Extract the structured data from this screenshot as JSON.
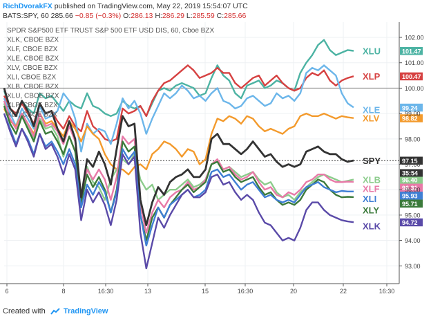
{
  "header": {
    "author": "RichDvorakFX",
    "published_text": "published on TradingView.com, May 22, 2019 15:54:07 UTC",
    "symbol_line": "BATS:SPY, 60",
    "last": "285.66",
    "change": "−0.85 (−0.3%)",
    "o_label": "O:",
    "o_val": "286.13",
    "h_label": "H:",
    "h_val": "286.29",
    "l_label": "L:",
    "l_val": "285.59",
    "c_label": "C:",
    "c_val": "285.66"
  },
  "footer": {
    "created_with": "Created with",
    "brand": "TradingView"
  },
  "chart_data": {
    "type": "line",
    "legend": [
      "SPDR S&P500 ETF TRUST S&P 500 ETF USD DIS, 60, Cboe BZX",
      "XLK, CBOE BZX",
      "XLF, CBOE BZX",
      "XLE, CBOE BZX",
      "XLV, CBOE BZX",
      "XLI, CBOE BZX",
      "XLB, CBOE BZX",
      "XLU, CBOE BZX",
      "XLP, CBOE BZX",
      "XLY, CBOE BZX"
    ],
    "x_ticks": [
      "6",
      "8",
      "16:30",
      "13",
      "15",
      "16:30",
      "20",
      "22",
      "16:30"
    ],
    "y_ticks": [
      93.0,
      94.0,
      95.0,
      96.0,
      97.0,
      98.0,
      99.0,
      100.0,
      101.0,
      102.0
    ],
    "ylim": [
      92.3,
      102.6
    ],
    "reference_line": 100.0,
    "price_line": 97.15,
    "countdown": "35:54",
    "colors": {
      "XLU": "#4cb3a3",
      "XLP": "#d64141",
      "XLE": "#6cb6ea",
      "XLV": "#f39a2c",
      "SPY": "#333333",
      "XLB": "#8ccc8c",
      "XLF": "#e87aa8",
      "XLI": "#3f7fd4",
      "XLY": "#3b7a3b",
      "XLK": "#5a4aa8"
    },
    "series": [
      {
        "name": "XLU",
        "last": 101.47,
        "label_style": "big",
        "values": [
          99.9,
          99.2,
          98.9,
          99.5,
          99.2,
          99.0,
          99.8,
          99.6,
          99.7,
          99.4,
          99.1,
          99.5,
          99.3,
          99.2,
          99.8,
          99.3,
          99.2,
          99.0,
          98.9,
          99.0,
          99.5,
          99.3,
          99.2,
          99.3,
          98.9,
          99.4,
          99.9,
          100.0,
          99.9,
          100.1,
          100.2,
          100.1,
          100.0,
          99.7,
          99.8,
          100.4,
          100.9,
          100.5,
          100.3,
          99.8,
          99.6,
          100.1,
          100.2,
          100.3,
          100.0,
          100.1,
          100.3,
          100.2,
          100.0,
          99.9,
          100.6,
          101.0,
          101.3,
          101.7,
          101.9,
          101.5,
          101.3,
          101.4,
          101.5,
          101.47
        ]
      },
      {
        "name": "XLP",
        "last": 100.47,
        "label_style": "big",
        "values": [
          99.7,
          99.2,
          99.0,
          99.4,
          99.0,
          98.6,
          99.4,
          99.0,
          99.1,
          98.7,
          98.4,
          98.9,
          98.5,
          98.3,
          99.1,
          98.5,
          98.3,
          98.0,
          97.9,
          98.0,
          99.2,
          99.0,
          99.1,
          99.3,
          98.9,
          99.5,
          99.9,
          100.2,
          100.3,
          100.5,
          100.7,
          100.9,
          100.7,
          100.4,
          100.5,
          100.6,
          100.8,
          100.6,
          100.6,
          100.2,
          100.0,
          100.2,
          100.4,
          100.5,
          100.1,
          100.3,
          100.5,
          100.2,
          100.0,
          99.9,
          100.0,
          100.4,
          100.6,
          100.5,
          100.7,
          100.3,
          100.1,
          100.3,
          100.4,
          100.47
        ]
      },
      {
        "name": "XLE",
        "last": 99.24,
        "label_style": "small",
        "values": [
          99.6,
          99.0,
          98.5,
          99.2,
          98.8,
          98.4,
          99.3,
          98.8,
          98.9,
          99.1,
          99.8,
          99.5,
          98.8,
          97.5,
          98.6,
          98.2,
          98.4,
          98.3,
          97.8,
          98.6,
          99.6,
          99.2,
          99.5,
          99.0,
          98.2,
          98.8,
          99.3,
          99.8,
          99.6,
          99.8,
          100.1,
          99.9,
          99.6,
          99.7,
          99.5,
          99.8,
          100.0,
          99.5,
          99.4,
          99.2,
          99.3,
          99.6,
          99.7,
          99.5,
          99.3,
          99.4,
          99.8,
          99.6,
          99.7,
          99.5,
          99.8,
          100.6,
          100.8,
          100.7,
          100.9,
          100.7,
          100.5,
          99.8,
          99.4,
          99.24
        ]
      },
      {
        "name": "XLV",
        "last": 98.82,
        "label_style": "small",
        "values": [
          99.2,
          98.7,
          98.5,
          99.0,
          98.6,
          98.2,
          99.0,
          98.6,
          98.7,
          98.4,
          98.1,
          98.7,
          98.4,
          97.9,
          98.5,
          98.2,
          98.0,
          97.4,
          97.0,
          96.8,
          96.8,
          96.6,
          96.9,
          97.0,
          96.8,
          97.4,
          97.6,
          97.9,
          97.8,
          97.6,
          97.3,
          97.6,
          97.5,
          97.0,
          97.2,
          98.2,
          98.8,
          98.7,
          98.9,
          98.8,
          98.6,
          98.9,
          98.8,
          98.5,
          98.3,
          98.4,
          98.3,
          98.2,
          98.4,
          98.5,
          98.9,
          99.0,
          98.9,
          98.9,
          99.0,
          98.9,
          98.8,
          98.9,
          98.85,
          98.82
        ]
      },
      {
        "name": "SPY",
        "last": 97.15,
        "label_style": "big",
        "values": [
          100.0,
          99.2,
          98.9,
          99.5,
          99.1,
          98.5,
          99.4,
          99.0,
          99.1,
          98.4,
          97.9,
          98.7,
          98.0,
          95.7,
          97.2,
          96.9,
          97.5,
          97.0,
          96.2,
          97.6,
          98.9,
          98.5,
          98.6,
          95.6,
          94.6,
          95.5,
          96.1,
          95.8,
          96.3,
          96.5,
          96.6,
          96.8,
          96.5,
          96.5,
          96.8,
          98.0,
          98.2,
          97.8,
          97.8,
          97.6,
          97.4,
          97.6,
          97.9,
          97.6,
          97.3,
          97.4,
          97.1,
          96.9,
          97.0,
          96.9,
          97.0,
          97.5,
          97.6,
          97.7,
          97.5,
          97.4,
          97.4,
          97.2,
          97.1,
          97.15
        ]
      },
      {
        "name": "XLB",
        "last": 96.4,
        "label_style": "big",
        "values": [
          99.4,
          98.6,
          98.2,
          98.9,
          98.5,
          98.0,
          98.8,
          98.4,
          98.5,
          98.1,
          97.3,
          98.1,
          97.5,
          95.8,
          96.9,
          96.3,
          96.1,
          95.6,
          96.4,
          96.8,
          97.2,
          97.0,
          97.4,
          96.4,
          96.0,
          96.2,
          95.6,
          95.8,
          96.0,
          96.0,
          96.2,
          96.4,
          96.1,
          96.2,
          96.4,
          97.0,
          97.1,
          96.8,
          96.9,
          96.7,
          96.5,
          96.6,
          96.7,
          96.4,
          96.2,
          96.3,
          95.9,
          95.7,
          95.8,
          95.6,
          95.9,
          96.1,
          96.3,
          96.5,
          96.6,
          96.5,
          96.4,
          96.3,
          96.35,
          96.4
        ]
      },
      {
        "name": "XLF",
        "last": 96.31,
        "label_style": "big",
        "values": [
          99.5,
          98.8,
          98.4,
          99.0,
          98.6,
          98.1,
          99.0,
          98.5,
          98.6,
          98.3,
          97.8,
          98.5,
          97.9,
          95.6,
          96.8,
          96.4,
          96.8,
          96.4,
          95.6,
          96.5,
          98.1,
          97.8,
          98.0,
          95.4,
          94.3,
          95.1,
          95.6,
          95.3,
          95.7,
          95.9,
          96.0,
          96.3,
          96.0,
          96.1,
          96.4,
          97.0,
          97.2,
          96.8,
          96.9,
          96.6,
          96.4,
          96.5,
          96.7,
          96.3,
          96.0,
          96.1,
          95.8,
          95.7,
          95.9,
          95.8,
          96.0,
          96.3,
          96.4,
          96.6,
          96.6,
          96.4,
          96.3,
          96.3,
          96.32,
          96.31
        ]
      },
      {
        "name": "XLI",
        "last": 95.93,
        "label_style": "big",
        "values": [
          99.0,
          98.4,
          97.8,
          98.4,
          98.0,
          97.4,
          98.2,
          97.7,
          97.9,
          97.5,
          97.0,
          97.6,
          97.0,
          95.3,
          96.2,
          95.8,
          96.3,
          95.9,
          95.1,
          95.9,
          97.6,
          97.2,
          97.5,
          95.0,
          93.8,
          94.6,
          95.3,
          94.9,
          95.4,
          95.6,
          95.8,
          96.0,
          95.7,
          95.8,
          96.0,
          96.7,
          96.8,
          96.5,
          96.6,
          96.3,
          96.0,
          96.2,
          96.3,
          96.0,
          95.7,
          95.8,
          95.6,
          95.5,
          95.6,
          95.5,
          95.8,
          96.1,
          96.2,
          96.3,
          96.1,
          96.0,
          95.9,
          95.95,
          95.93,
          95.93
        ]
      },
      {
        "name": "XLY",
        "last": 95.71,
        "label_style": "big",
        "values": [
          99.3,
          98.6,
          98.2,
          98.9,
          98.4,
          97.9,
          98.7,
          98.2,
          98.3,
          97.9,
          97.4,
          98.1,
          97.5,
          95.5,
          96.6,
          96.1,
          96.5,
          96.0,
          95.1,
          96.0,
          97.9,
          97.5,
          97.7,
          95.0,
          94.0,
          94.9,
          95.3,
          94.9,
          95.4,
          95.7,
          96.0,
          96.2,
          95.9,
          96.1,
          96.3,
          97.0,
          97.1,
          96.7,
          96.8,
          96.5,
          96.3,
          96.4,
          96.5,
          96.1,
          95.8,
          95.9,
          95.6,
          95.4,
          95.5,
          95.4,
          95.6,
          96.0,
          96.2,
          96.4,
          96.3,
          96.0,
          95.8,
          95.7,
          95.72,
          95.71
        ]
      },
      {
        "name": "XLK",
        "last": 94.72,
        "label_style": "big",
        "values": [
          99.0,
          98.3,
          97.7,
          98.4,
          97.9,
          97.3,
          98.2,
          97.6,
          97.8,
          97.3,
          96.6,
          97.4,
          96.8,
          94.8,
          96.0,
          95.5,
          95.9,
          95.4,
          94.6,
          95.6,
          97.4,
          97.0,
          97.3,
          94.3,
          92.9,
          93.9,
          94.9,
          94.5,
          95.0,
          95.4,
          95.8,
          96.0,
          95.7,
          95.7,
          95.9,
          96.5,
          96.6,
          96.2,
          96.3,
          95.9,
          95.6,
          95.8,
          95.6,
          95.1,
          94.7,
          94.6,
          94.3,
          94.0,
          94.1,
          94.0,
          94.5,
          95.2,
          95.5,
          95.5,
          95.2,
          95.0,
          94.9,
          94.8,
          94.75,
          94.72
        ]
      }
    ]
  }
}
